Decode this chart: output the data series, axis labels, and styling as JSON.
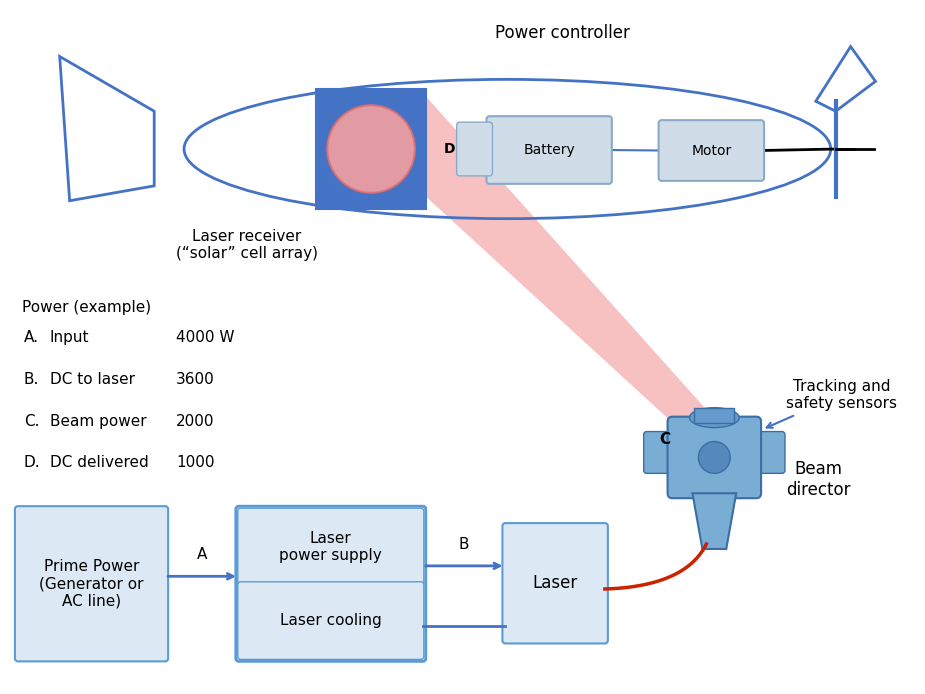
{
  "bg_color": "#ffffff",
  "power_controller_label": "Power controller",
  "laser_receiver_label": "Laser receiver\n(“solar” cell array)",
  "tracking_label": "Tracking and\nsafety sensors",
  "beam_director_label": "Beam\ndirector",
  "power_example_title": "Power (example)",
  "power_items": [
    [
      "A.",
      "Input",
      "4000 W"
    ],
    [
      "B.",
      "DC to laser",
      "3600"
    ],
    [
      "C.",
      "Beam power",
      "2000"
    ],
    [
      "D.",
      "DC delivered",
      "1000"
    ]
  ],
  "box_color": "#dce9f5",
  "box_edge_color": "#5b9bd5",
  "plane_color": "#4472c4",
  "beam_fill": "#f4a0a0",
  "blue_device_color": "#7aadd4",
  "red_cable": "#cc2200",
  "blue_line": "#4472c4",
  "label_color": "#000000"
}
